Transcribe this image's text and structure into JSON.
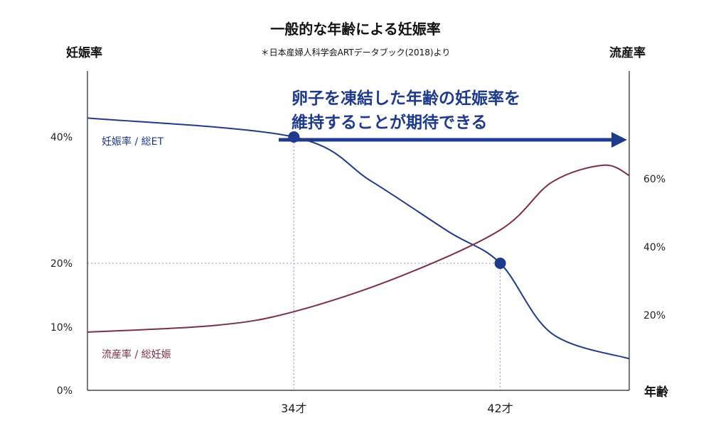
{
  "chart_data": {
    "type": "line",
    "title": "一般的な年齢による妊娠率",
    "subtitle": "＊日本産婦人科学会ARTデータブック(2018)より",
    "ylabel_left": "妊娠率",
    "ylabel_right": "流産率",
    "xlabel": "年齢",
    "left_axis_ticks": [
      "0%",
      "10%",
      "20%",
      "40%"
    ],
    "right_axis_ticks": [
      "20%",
      "40%",
      "60%"
    ],
    "x_ticks": [
      "34才",
      "42才"
    ],
    "grid": false,
    "series": [
      {
        "name": "妊娠率 / 総ET",
        "axis": "left",
        "color": "#1e3a8a",
        "points": [
          [
            26,
            43
          ],
          [
            34,
            40
          ],
          [
            37,
            33
          ],
          [
            40,
            25
          ],
          [
            42,
            20
          ],
          [
            44,
            9
          ],
          [
            47,
            5
          ]
        ],
        "markers": [
          [
            34,
            40
          ],
          [
            42,
            20
          ]
        ]
      },
      {
        "name": "流産率 / 総妊娠",
        "axis": "right",
        "color": "#7a2e4b",
        "points": [
          [
            26,
            15
          ],
          [
            31,
            17
          ],
          [
            34,
            21
          ],
          [
            38,
            31
          ],
          [
            42,
            45
          ],
          [
            44,
            59
          ],
          [
            46,
            64
          ],
          [
            47,
            61
          ]
        ]
      }
    ],
    "reference_lines": [
      {
        "axis": "x",
        "value": 34
      },
      {
        "axis": "x",
        "value": 42
      },
      {
        "axis": "y_left",
        "value": 20
      }
    ],
    "annotation": {
      "lines": [
        "卵子を凍結した年齢の妊娠率を",
        "維持することが期待できる"
      ],
      "color": "#1e3a8a"
    }
  }
}
